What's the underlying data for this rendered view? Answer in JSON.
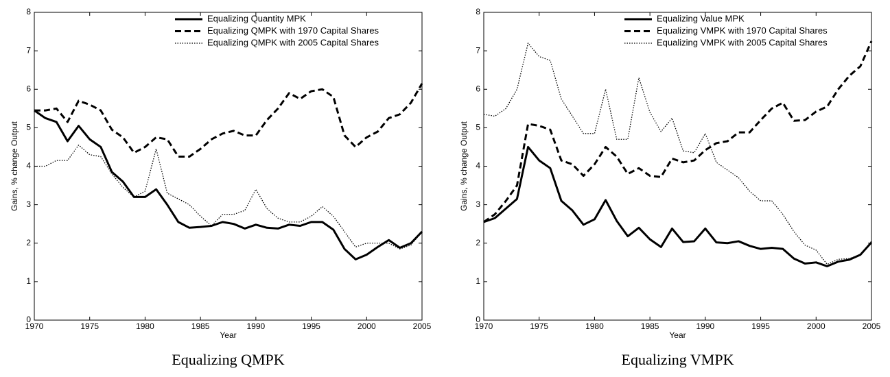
{
  "chart_data": [
    {
      "type": "line",
      "caption": "Equalizing QMPK",
      "xlabel": "Year",
      "ylabel": "Gains, % change Output",
      "x": [
        1970,
        1971,
        1972,
        1973,
        1974,
        1975,
        1976,
        1977,
        1978,
        1979,
        1980,
        1981,
        1982,
        1983,
        1984,
        1985,
        1986,
        1987,
        1988,
        1989,
        1990,
        1991,
        1992,
        1993,
        1994,
        1995,
        1996,
        1997,
        1998,
        1999,
        2000,
        2001,
        2002,
        2003,
        2004,
        2005
      ],
      "xlim": [
        1970,
        2005
      ],
      "xticks": [
        1970,
        1975,
        1980,
        1985,
        1990,
        1995,
        2000,
        2005
      ],
      "ylim": [
        0,
        8
      ],
      "yticks": [
        0,
        1,
        2,
        3,
        4,
        5,
        6,
        7,
        8
      ],
      "legend": "upper right",
      "series": [
        {
          "name": "Equalizing Quantity MPK",
          "color": "#000000",
          "style": "solid",
          "values": [
            5.45,
            5.25,
            5.15,
            4.65,
            5.05,
            4.7,
            4.5,
            3.85,
            3.6,
            3.2,
            3.2,
            3.4,
            3.0,
            2.55,
            2.4,
            2.42,
            2.45,
            2.55,
            2.5,
            2.38,
            2.48,
            2.4,
            2.38,
            2.48,
            2.45,
            2.55,
            2.55,
            2.35,
            1.85,
            1.58,
            1.7,
            1.9,
            2.08,
            1.88,
            2.0,
            2.3
          ]
        },
        {
          "name": "Equalizing QMPK with 1970 Capital Shares",
          "color": "#000000",
          "style": "dashed",
          "values": [
            5.45,
            5.45,
            5.5,
            5.15,
            5.7,
            5.6,
            5.45,
            4.95,
            4.75,
            4.35,
            4.5,
            4.75,
            4.7,
            4.25,
            4.25,
            4.45,
            4.7,
            4.85,
            4.92,
            4.8,
            4.8,
            5.2,
            5.5,
            5.9,
            5.75,
            5.95,
            6.0,
            5.8,
            4.8,
            4.5,
            4.75,
            4.9,
            5.25,
            5.35,
            5.65,
            6.15
          ]
        },
        {
          "name": "Equalizing QMPK with 2005 Capital Shares",
          "color": "#000000",
          "style": "dotted",
          "values": [
            4.0,
            4.0,
            4.15,
            4.15,
            4.55,
            4.3,
            4.25,
            3.8,
            3.45,
            3.2,
            3.35,
            4.45,
            3.3,
            3.15,
            3.0,
            2.7,
            2.45,
            2.75,
            2.75,
            2.85,
            3.4,
            2.9,
            2.65,
            2.55,
            2.55,
            2.7,
            2.95,
            2.7,
            2.3,
            1.9,
            2.0,
            2.0,
            2.0,
            1.85,
            1.95,
            2.3
          ]
        }
      ]
    },
    {
      "type": "line",
      "caption": "Equalizing VMPK",
      "xlabel": "Year",
      "ylabel": "Gains, % change Output",
      "x": [
        1970,
        1971,
        1972,
        1973,
        1974,
        1975,
        1976,
        1977,
        1978,
        1979,
        1980,
        1981,
        1982,
        1983,
        1984,
        1985,
        1986,
        1987,
        1988,
        1989,
        1990,
        1991,
        1992,
        1993,
        1994,
        1995,
        1996,
        1997,
        1998,
        1999,
        2000,
        2001,
        2002,
        2003,
        2004,
        2005
      ],
      "xlim": [
        1970,
        2005
      ],
      "xticks": [
        1970,
        1975,
        1980,
        1985,
        1990,
        1995,
        2000,
        2005
      ],
      "ylim": [
        0,
        8
      ],
      "yticks": [
        0,
        1,
        2,
        3,
        4,
        5,
        6,
        7,
        8
      ],
      "legend": "upper right",
      "series": [
        {
          "name": "Equalizing Value MPK",
          "color": "#000000",
          "style": "solid",
          "values": [
            2.55,
            2.65,
            2.9,
            3.15,
            4.5,
            4.15,
            3.95,
            3.1,
            2.85,
            2.48,
            2.62,
            3.12,
            2.58,
            2.18,
            2.4,
            2.1,
            1.9,
            2.38,
            2.03,
            2.05,
            2.38,
            2.02,
            2.0,
            2.05,
            1.93,
            1.85,
            1.88,
            1.85,
            1.6,
            1.47,
            1.5,
            1.4,
            1.52,
            1.57,
            1.7,
            2.02
          ]
        },
        {
          "name": "Equalizing VMPK with 1970 Capital Shares",
          "color": "#000000",
          "style": "dashed",
          "values": [
            2.55,
            2.75,
            3.1,
            3.5,
            5.1,
            5.05,
            4.95,
            4.15,
            4.05,
            3.75,
            4.05,
            4.5,
            4.25,
            3.8,
            3.95,
            3.75,
            3.72,
            4.2,
            4.1,
            4.15,
            4.42,
            4.6,
            4.65,
            4.88,
            4.88,
            5.2,
            5.5,
            5.65,
            5.18,
            5.2,
            5.42,
            5.55,
            6.0,
            6.35,
            6.6,
            7.25
          ]
        },
        {
          "name": "Equalizing VMPK with 2005 Capital Shares",
          "color": "#000000",
          "style": "dotted",
          "values": [
            5.35,
            5.3,
            5.5,
            6.0,
            7.2,
            6.85,
            6.75,
            5.75,
            5.3,
            4.85,
            4.85,
            6.0,
            4.7,
            4.7,
            6.3,
            5.4,
            4.9,
            5.25,
            4.4,
            4.35,
            4.85,
            4.1,
            3.9,
            3.7,
            3.35,
            3.1,
            3.1,
            2.75,
            2.3,
            1.95,
            1.82,
            1.45,
            1.58,
            1.6,
            1.7,
            2.05
          ]
        }
      ]
    }
  ]
}
